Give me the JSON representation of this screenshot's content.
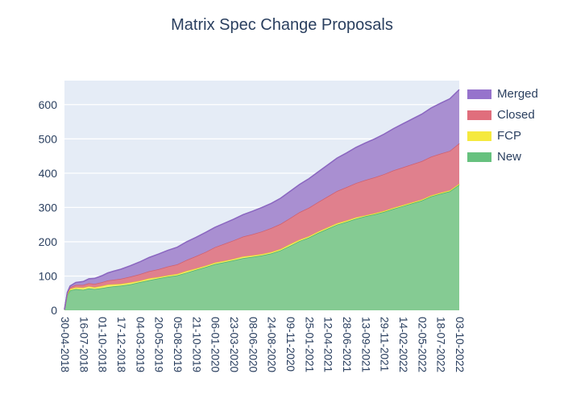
{
  "chart_data": {
    "type": "area",
    "stacked": true,
    "title": "Matrix Spec Change Proposals",
    "text_color": "#2a3f5f",
    "plot_bg": "#e5ecf6",
    "grid_color": "#ffffff",
    "y_ticks": [
      0,
      100,
      200,
      300,
      400,
      500,
      600
    ],
    "y_max": 670,
    "x_tick_labels": [
      "30-04-2018",
      "16-07-2018",
      "01-10-2018",
      "17-12-2018",
      "04-03-2019",
      "20-05-2019",
      "05-08-2019",
      "21-10-2019",
      "06-01-2020",
      "23-03-2020",
      "08-06-2020",
      "24-08-2020",
      "09-11-2020",
      "25-01-2021",
      "12-04-2021",
      "28-06-2021",
      "13-09-2021",
      "29-11-2021",
      "14-02-2022",
      "02-05-2022",
      "18-07-2022",
      "03-10-2022"
    ],
    "x": [
      0,
      0.15,
      0.3,
      0.6,
      1,
      1.3,
      1.6,
      2,
      2.3,
      2.6,
      3,
      3.5,
      4,
      4.5,
      5,
      5.5,
      6,
      6.5,
      7,
      7.5,
      8,
      8.5,
      9,
      9.5,
      10,
      10.5,
      11,
      11.5,
      12,
      12.5,
      13,
      13.5,
      14,
      14.5,
      15,
      15.5,
      16,
      16.5,
      17,
      17.5,
      18,
      18.5,
      19,
      19.5,
      20,
      20.5,
      21
    ],
    "series": [
      {
        "name": "New",
        "fill": "#85cb93",
        "line": "#4db36a",
        "legend_color": "#66c17e",
        "values": [
          2,
          45,
          58,
          62,
          60,
          64,
          62,
          65,
          68,
          70,
          72,
          76,
          82,
          88,
          93,
          98,
          102,
          110,
          118,
          126,
          135,
          140,
          146,
          152,
          156,
          160,
          166,
          175,
          188,
          202,
          212,
          226,
          238,
          250,
          258,
          267,
          274,
          280,
          287,
          296,
          304,
          312,
          320,
          332,
          340,
          347,
          366
        ]
      },
      {
        "name": "FCP",
        "fill": "#f7ef6a",
        "line": "#e8d62f",
        "legend_color": "#f5e93e",
        "values": [
          0,
          2,
          4,
          5,
          6,
          6,
          5,
          6,
          7,
          6,
          5,
          5,
          4,
          5,
          4,
          4,
          4,
          5,
          4,
          4,
          4,
          4,
          4,
          5,
          4,
          4,
          4,
          4,
          5,
          4,
          4,
          4,
          4,
          4,
          4,
          4,
          3,
          3,
          3,
          3,
          3,
          3,
          3,
          3,
          3,
          3,
          3
        ]
      },
      {
        "name": "Closed",
        "fill": "#e0808d",
        "line": "#d05f6e",
        "legend_color": "#e06e7c",
        "values": [
          0,
          3,
          5,
          7,
          8,
          9,
          10,
          11,
          12,
          13,
          15,
          17,
          19,
          21,
          23,
          26,
          28,
          32,
          36,
          40,
          45,
          50,
          54,
          58,
          62,
          66,
          70,
          73,
          76,
          80,
          83,
          86,
          90,
          94,
          97,
          100,
          103,
          105,
          107,
          109,
          110,
          111,
          112,
          113,
          114,
          115,
          118
        ]
      },
      {
        "name": "Merged",
        "fill": "#a98fd1",
        "line": "#8a66c0",
        "legend_color": "#9673cc",
        "values": [
          0,
          2,
          4,
          7,
          10,
          13,
          16,
          19,
          22,
          25,
          28,
          32,
          36,
          40,
          44,
          47,
          50,
          53,
          55,
          57,
          58,
          60,
          62,
          64,
          67,
          70,
          72,
          75,
          78,
          81,
          85,
          88,
          92,
          96,
          100,
          104,
          108,
          112,
          117,
          122,
          127,
          132,
          137,
          142,
          147,
          152,
          157
        ]
      }
    ],
    "legend_order": [
      "Merged",
      "Closed",
      "FCP",
      "New"
    ]
  }
}
